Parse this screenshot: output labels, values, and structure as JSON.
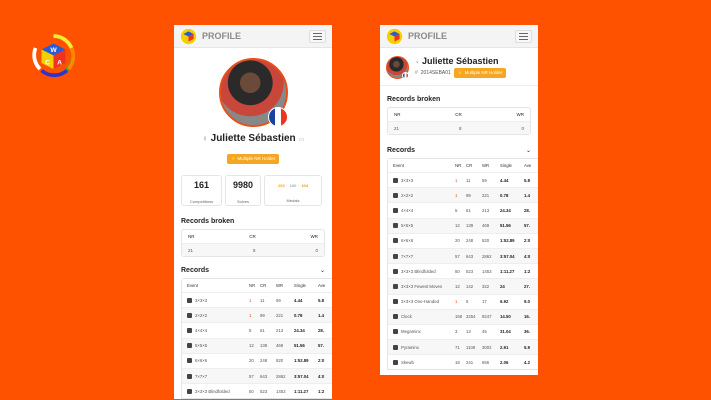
{
  "header": {
    "title": "PROFILE"
  },
  "profile": {
    "name": "Juliette Sébastien",
    "wca_id": "2014SEBA01",
    "badge": "Multiple NR Holder"
  },
  "stats": [
    {
      "value": "161",
      "label": "Competitions"
    },
    {
      "value": "9980",
      "label": "Solves"
    }
  ],
  "medals": {
    "gold": "253",
    "silver": "160",
    "bronze": "104",
    "label": "Medals",
    "sep": "·"
  },
  "records_broken": {
    "title": "Records broken",
    "headers": [
      "NR",
      "CR",
      "WR"
    ],
    "values": [
      "21",
      "8",
      "0"
    ]
  },
  "records": {
    "title": "Records",
    "headers": [
      "Event",
      "NR",
      "CR",
      "WR",
      "Single",
      "Ave"
    ],
    "rows": [
      [
        "3×3×3",
        "1",
        "11",
        "59",
        "4.44",
        "5.8"
      ],
      [
        "2×2×2",
        "1",
        "99",
        "221",
        "0.78",
        "1.4"
      ],
      [
        "4×4×4",
        "5",
        "61",
        "213",
        "24.34",
        "28."
      ],
      [
        "5×5×5",
        "12",
        "139",
        "469",
        "51.56",
        "57."
      ],
      [
        "6×6×6",
        "20",
        "248",
        "820",
        "1:52.89",
        "2:0"
      ],
      [
        "7×7×7",
        "57",
        "643",
        "2862",
        "3:57.04",
        "4:0"
      ],
      [
        "3×3×3 Blindfolded",
        "50",
        "523",
        "1453",
        "1:11.27",
        "1:2"
      ],
      [
        "3×3×3 Fewest Moves",
        "12",
        "142",
        "322",
        "24",
        "27."
      ],
      [
        "3×3×3 One-Handed",
        "1",
        "5",
        "17",
        "6.92",
        "9.0"
      ],
      [
        "Clock",
        "158",
        "3254",
        "9247",
        "14.50",
        "16."
      ],
      [
        "Megaminx",
        "3",
        "13",
        "45",
        "31.04",
        "36."
      ],
      [
        "Pyraminx",
        "71",
        "1108",
        "3002",
        "2.91",
        "5.9"
      ],
      [
        "Skewb",
        "18",
        "241",
        "656",
        "2.06",
        "4.2"
      ]
    ]
  },
  "colors": {
    "background": "#ff5200",
    "accent": "#e8501a",
    "badge": "#f5a623"
  }
}
